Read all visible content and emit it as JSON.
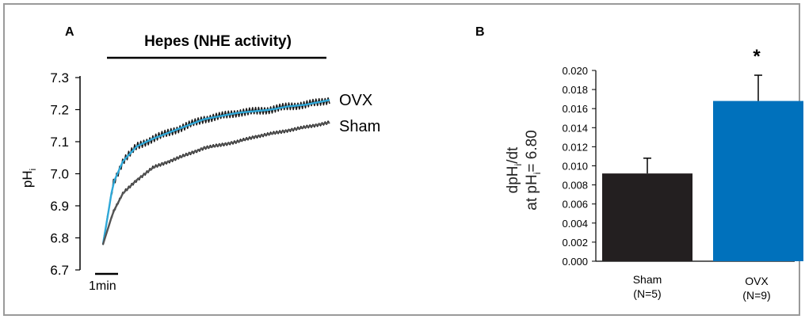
{
  "chart_data": [
    {
      "type": "line",
      "panel_label": "A",
      "title": "Hepes (NHE activity)",
      "ylabel_main": "pH",
      "ylabel_sub": "i",
      "yticks": [
        "7.3",
        "7.2",
        "7.1",
        "7.0",
        "6.9",
        "6.8",
        "6.7"
      ],
      "ylim": [
        6.7,
        7.3
      ],
      "scale_bar_label": "1min",
      "series": [
        {
          "name": "OVX",
          "color": "#1a1a1a",
          "fit_color": "#2fa8d8",
          "x": [
            0.0,
            0.3,
            0.6,
            1.0,
            1.5,
            2.0,
            2.5,
            3.0,
            3.5,
            4.0,
            4.5,
            5.0,
            5.5,
            6.0,
            6.5,
            6.74
          ],
          "y": [
            6.78,
            6.97,
            7.04,
            7.085,
            7.11,
            7.13,
            7.15,
            7.17,
            7.18,
            7.19,
            7.195,
            7.2,
            7.21,
            7.215,
            7.225,
            7.23
          ]
        },
        {
          "name": "Sham",
          "color": "#1a1a1a",
          "fit_color": "#555555",
          "x": [
            0.0,
            0.3,
            0.6,
            1.0,
            1.5,
            2.0,
            2.5,
            3.0,
            3.5,
            4.0,
            4.5,
            5.0,
            5.5,
            6.0,
            6.5,
            6.74
          ],
          "y": [
            6.78,
            6.88,
            6.94,
            6.98,
            7.02,
            7.04,
            7.06,
            7.08,
            7.09,
            7.1,
            7.115,
            7.125,
            7.135,
            7.145,
            7.155,
            7.16
          ]
        }
      ]
    },
    {
      "type": "bar",
      "panel_label": "B",
      "ylabel_line1_main": "dpH",
      "ylabel_line1_sub": "i",
      "ylabel_line1_end": "/dt",
      "ylabel_line2_main": "at pH",
      "ylabel_line2_sub": "i",
      "ylabel_line2_end": "= 6.80",
      "yticks": [
        "0.020",
        "0.018",
        "0.016",
        "0.014",
        "0.012",
        "0.010",
        "0.008",
        "0.006",
        "0.004",
        "0.002",
        "0.000"
      ],
      "ylim": [
        0,
        0.02
      ],
      "categories": [
        "Sham",
        "OVX"
      ],
      "category_sublabels": [
        "(N=5)",
        "(N=9)"
      ],
      "values": [
        0.0092,
        0.0168
      ],
      "errors": [
        0.0016,
        0.0027
      ],
      "colors": [
        "#231f20",
        "#0071bc"
      ],
      "significance": "*"
    }
  ]
}
